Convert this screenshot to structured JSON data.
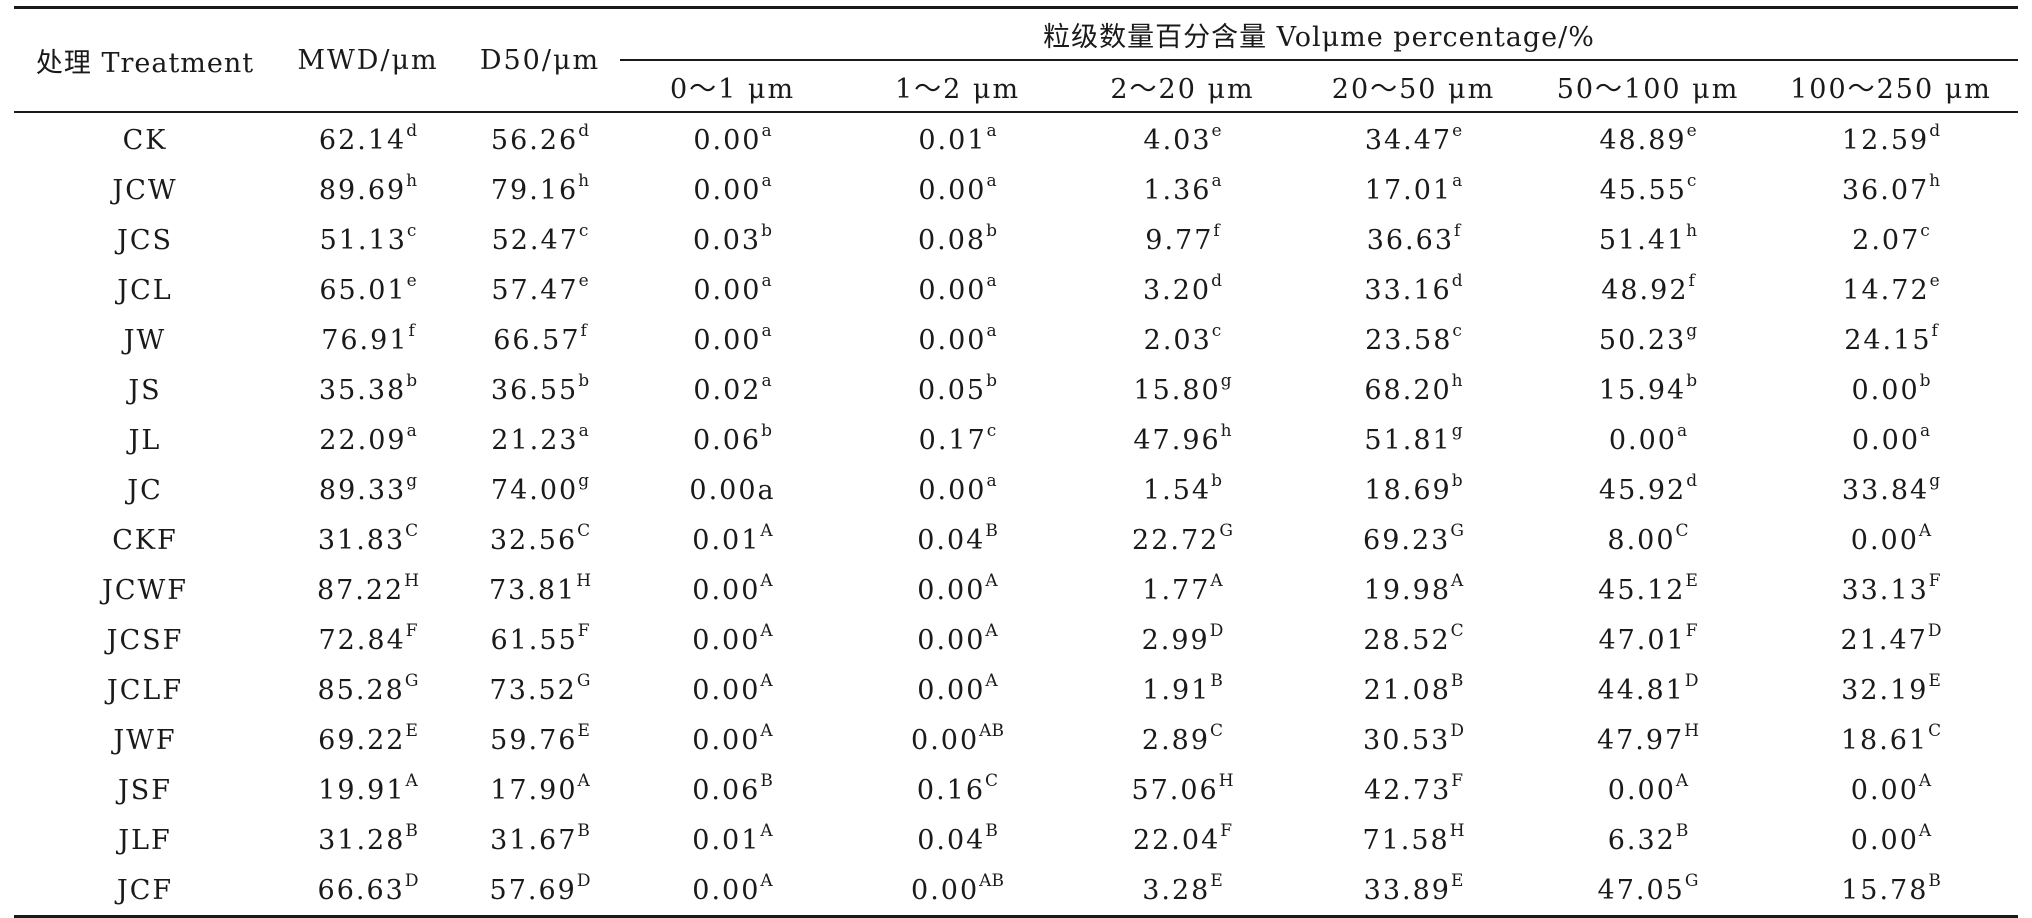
{
  "table": {
    "header": {
      "treatment": "处理 Treatment",
      "mwd": "MWD/μm",
      "d50": "D50/μm",
      "volume_group": "粒级数量百分含量 Volμme percentage/%",
      "bins": [
        "0～1 μm",
        "1～2 μm",
        "2～20 μm",
        "20～50 μm",
        "50～100 μm",
        "100～250 μm"
      ]
    },
    "rows": [
      {
        "name": "CK",
        "cells": [
          {
            "v": "62.14",
            "s": "d"
          },
          {
            "v": "56.26",
            "s": "d"
          },
          {
            "v": "0.00",
            "s": "a"
          },
          {
            "v": "0.01",
            "s": "a"
          },
          {
            "v": "4.03",
            "s": "e"
          },
          {
            "v": "34.47",
            "s": "e"
          },
          {
            "v": "48.89",
            "s": "e"
          },
          {
            "v": "12.59",
            "s": "d"
          }
        ]
      },
      {
        "name": "JCW",
        "cells": [
          {
            "v": "89.69",
            "s": "h"
          },
          {
            "v": "79.16",
            "s": "h"
          },
          {
            "v": "0.00",
            "s": "a"
          },
          {
            "v": "0.00",
            "s": "a"
          },
          {
            "v": "1.36",
            "s": "a"
          },
          {
            "v": "17.01",
            "s": "a"
          },
          {
            "v": "45.55",
            "s": "c"
          },
          {
            "v": "36.07",
            "s": "h"
          }
        ]
      },
      {
        "name": "JCS",
        "cells": [
          {
            "v": "51.13",
            "s": "c"
          },
          {
            "v": "52.47",
            "s": "c"
          },
          {
            "v": "0.03",
            "s": "b"
          },
          {
            "v": "0.08",
            "s": "b"
          },
          {
            "v": "9.77",
            "s": "f"
          },
          {
            "v": "36.63",
            "s": "f"
          },
          {
            "v": "51.41",
            "s": "h"
          },
          {
            "v": "2.07",
            "s": "c"
          }
        ]
      },
      {
        "name": "JCL",
        "cells": [
          {
            "v": "65.01",
            "s": "e"
          },
          {
            "v": "57.47",
            "s": "e"
          },
          {
            "v": "0.00",
            "s": "a"
          },
          {
            "v": "0.00",
            "s": "a"
          },
          {
            "v": "3.20",
            "s": "d"
          },
          {
            "v": "33.16",
            "s": "d"
          },
          {
            "v": "48.92",
            "s": "f"
          },
          {
            "v": "14.72",
            "s": "e"
          }
        ]
      },
      {
        "name": "JW",
        "cells": [
          {
            "v": "76.91",
            "s": "f"
          },
          {
            "v": "66.57",
            "s": "f"
          },
          {
            "v": "0.00",
            "s": "a"
          },
          {
            "v": "0.00",
            "s": "a"
          },
          {
            "v": "2.03",
            "s": "c"
          },
          {
            "v": "23.58",
            "s": "c"
          },
          {
            "v": "50.23",
            "s": "g"
          },
          {
            "v": "24.15",
            "s": "f"
          }
        ]
      },
      {
        "name": "JS",
        "cells": [
          {
            "v": "35.38",
            "s": "b"
          },
          {
            "v": "36.55",
            "s": "b"
          },
          {
            "v": "0.02",
            "s": "a"
          },
          {
            "v": "0.05",
            "s": "b"
          },
          {
            "v": "15.80",
            "s": "g"
          },
          {
            "v": "68.20",
            "s": "h"
          },
          {
            "v": "15.94",
            "s": "b"
          },
          {
            "v": "0.00",
            "s": "b"
          }
        ]
      },
      {
        "name": "JL",
        "cells": [
          {
            "v": "22.09",
            "s": "a"
          },
          {
            "v": "21.23",
            "s": "a"
          },
          {
            "v": "0.06",
            "s": "b"
          },
          {
            "v": "0.17",
            "s": "c"
          },
          {
            "v": "47.96",
            "s": "h"
          },
          {
            "v": "51.81",
            "s": "g"
          },
          {
            "v": "0.00",
            "s": "a"
          },
          {
            "v": "0.00",
            "s": "a"
          }
        ]
      },
      {
        "name": "JC",
        "cells": [
          {
            "v": "89.33",
            "s": "g"
          },
          {
            "v": "74.00",
            "s": "g"
          },
          {
            "v": "0.00a",
            "s": ""
          },
          {
            "v": "0.00",
            "s": "a"
          },
          {
            "v": "1.54",
            "s": "b"
          },
          {
            "v": "18.69",
            "s": "b"
          },
          {
            "v": "45.92",
            "s": "d"
          },
          {
            "v": "33.84",
            "s": "g"
          }
        ]
      },
      {
        "name": "CKF",
        "cells": [
          {
            "v": "31.83",
            "s": "C"
          },
          {
            "v": "32.56",
            "s": "C"
          },
          {
            "v": "0.01",
            "s": "A"
          },
          {
            "v": "0.04",
            "s": "B"
          },
          {
            "v": "22.72",
            "s": "G"
          },
          {
            "v": "69.23",
            "s": "G"
          },
          {
            "v": "8.00",
            "s": "C"
          },
          {
            "v": "0.00",
            "s": "A"
          }
        ]
      },
      {
        "name": "JCWF",
        "cells": [
          {
            "v": "87.22",
            "s": "H"
          },
          {
            "v": "73.81",
            "s": "H"
          },
          {
            "v": "0.00",
            "s": "A"
          },
          {
            "v": "0.00",
            "s": "A"
          },
          {
            "v": "1.77",
            "s": "A"
          },
          {
            "v": "19.98",
            "s": "A"
          },
          {
            "v": "45.12",
            "s": "E"
          },
          {
            "v": "33.13",
            "s": "F"
          }
        ]
      },
      {
        "name": "JCSF",
        "cells": [
          {
            "v": "72.84",
            "s": "F"
          },
          {
            "v": "61.55",
            "s": "F"
          },
          {
            "v": "0.00",
            "s": "A"
          },
          {
            "v": "0.00",
            "s": "A"
          },
          {
            "v": "2.99",
            "s": "D"
          },
          {
            "v": "28.52",
            "s": "C"
          },
          {
            "v": "47.01",
            "s": "F"
          },
          {
            "v": "21.47",
            "s": "D"
          }
        ]
      },
      {
        "name": "JCLF",
        "cells": [
          {
            "v": "85.28",
            "s": "G"
          },
          {
            "v": "73.52",
            "s": "G"
          },
          {
            "v": "0.00",
            "s": "A"
          },
          {
            "v": "0.00",
            "s": "A"
          },
          {
            "v": "1.91",
            "s": "B"
          },
          {
            "v": "21.08",
            "s": "B"
          },
          {
            "v": "44.81",
            "s": "D"
          },
          {
            "v": "32.19",
            "s": "E"
          }
        ]
      },
      {
        "name": "JWF",
        "cells": [
          {
            "v": "69.22",
            "s": "E"
          },
          {
            "v": "59.76",
            "s": "E"
          },
          {
            "v": "0.00",
            "s": "A"
          },
          {
            "v": "0.00",
            "s": "AB"
          },
          {
            "v": "2.89",
            "s": "C"
          },
          {
            "v": "30.53",
            "s": "D"
          },
          {
            "v": "47.97",
            "s": "H"
          },
          {
            "v": "18.61",
            "s": "C"
          }
        ]
      },
      {
        "name": "JSF",
        "cells": [
          {
            "v": "19.91",
            "s": "A"
          },
          {
            "v": "17.90",
            "s": "A"
          },
          {
            "v": "0.06",
            "s": "B"
          },
          {
            "v": "0.16",
            "s": "C"
          },
          {
            "v": "57.06",
            "s": "H"
          },
          {
            "v": "42.73",
            "s": "F"
          },
          {
            "v": "0.00",
            "s": "A"
          },
          {
            "v": "0.00",
            "s": "A"
          }
        ]
      },
      {
        "name": "JLF",
        "cells": [
          {
            "v": "31.28",
            "s": "B"
          },
          {
            "v": "31.67",
            "s": "B"
          },
          {
            "v": "0.01",
            "s": "A"
          },
          {
            "v": "0.04",
            "s": "B"
          },
          {
            "v": "22.04",
            "s": "F"
          },
          {
            "v": "71.58",
            "s": "H"
          },
          {
            "v": "6.32",
            "s": "B"
          },
          {
            "v": "0.00",
            "s": "A"
          }
        ]
      },
      {
        "name": "JCF",
        "cells": [
          {
            "v": "66.63",
            "s": "D"
          },
          {
            "v": "57.69",
            "s": "D"
          },
          {
            "v": "0.00",
            "s": "A"
          },
          {
            "v": "0.00",
            "s": "AB"
          },
          {
            "v": "3.28",
            "s": "E"
          },
          {
            "v": "33.89",
            "s": "E"
          },
          {
            "v": "47.05",
            "s": "G"
          },
          {
            "v": "15.78",
            "s": "B"
          }
        ]
      }
    ]
  }
}
